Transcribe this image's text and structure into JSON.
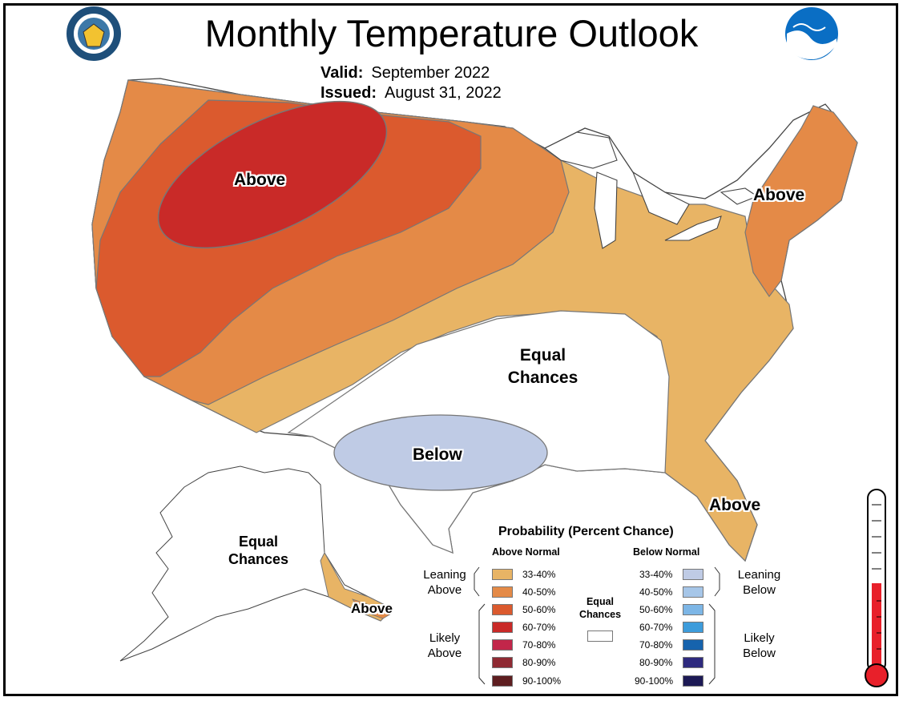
{
  "header": {
    "title": "Monthly Temperature Outlook",
    "valid_label": "Valid:",
    "valid_value": "September 2022",
    "issued_label": "Issued:",
    "issued_value": "August 31, 2022"
  },
  "map_labels": {
    "above_northwest": "Above",
    "above_northeast": "Above",
    "above_southeast": "Above",
    "equal_chances_center_line1": "Equal",
    "equal_chances_center_line2": "Chances",
    "below_texas": "Below",
    "equal_chances_alaska_line1": "Equal",
    "equal_chances_alaska_line2": "Chances",
    "above_alaska": "Above"
  },
  "legend": {
    "title": "Probability (Percent Chance)",
    "above_header": "Above Normal",
    "below_header": "Below Normal",
    "leaning_above_line1": "Leaning",
    "leaning_above_line2": "Above",
    "likely_above_line1": "Likely",
    "likely_above_line2": "Above",
    "leaning_below_line1": "Leaning",
    "leaning_below_line2": "Below",
    "likely_below_line1": "Likely",
    "likely_below_line2": "Below",
    "equal_line1": "Equal",
    "equal_line2": "Chances",
    "above_bins": [
      {
        "label": "33-40%",
        "color": "#E8B465"
      },
      {
        "label": "40-50%",
        "color": "#E48A47"
      },
      {
        "label": "50-60%",
        "color": "#DB5A2E"
      },
      {
        "label": "60-70%",
        "color": "#C92A28"
      },
      {
        "label": "70-80%",
        "color": "#C2264A"
      },
      {
        "label": "80-90%",
        "color": "#8F2A33"
      },
      {
        "label": "90-100%",
        "color": "#5E1E20"
      }
    ],
    "below_bins": [
      {
        "label": "33-40%",
        "color": "#BFCBE5"
      },
      {
        "label": "40-50%",
        "color": "#A6C6E8"
      },
      {
        "label": "50-60%",
        "color": "#7DB6E6"
      },
      {
        "label": "60-70%",
        "color": "#3D9CDB"
      },
      {
        "label": "70-80%",
        "color": "#1663AD"
      },
      {
        "label": "80-90%",
        "color": "#2E2A7E"
      },
      {
        "label": "90-100%",
        "color": "#1D1A55"
      }
    ],
    "equal_color": "#FFFFFF"
  },
  "icons": [
    "commerce-seal-icon",
    "noaa-logo-icon",
    "thermometer-icon"
  ]
}
